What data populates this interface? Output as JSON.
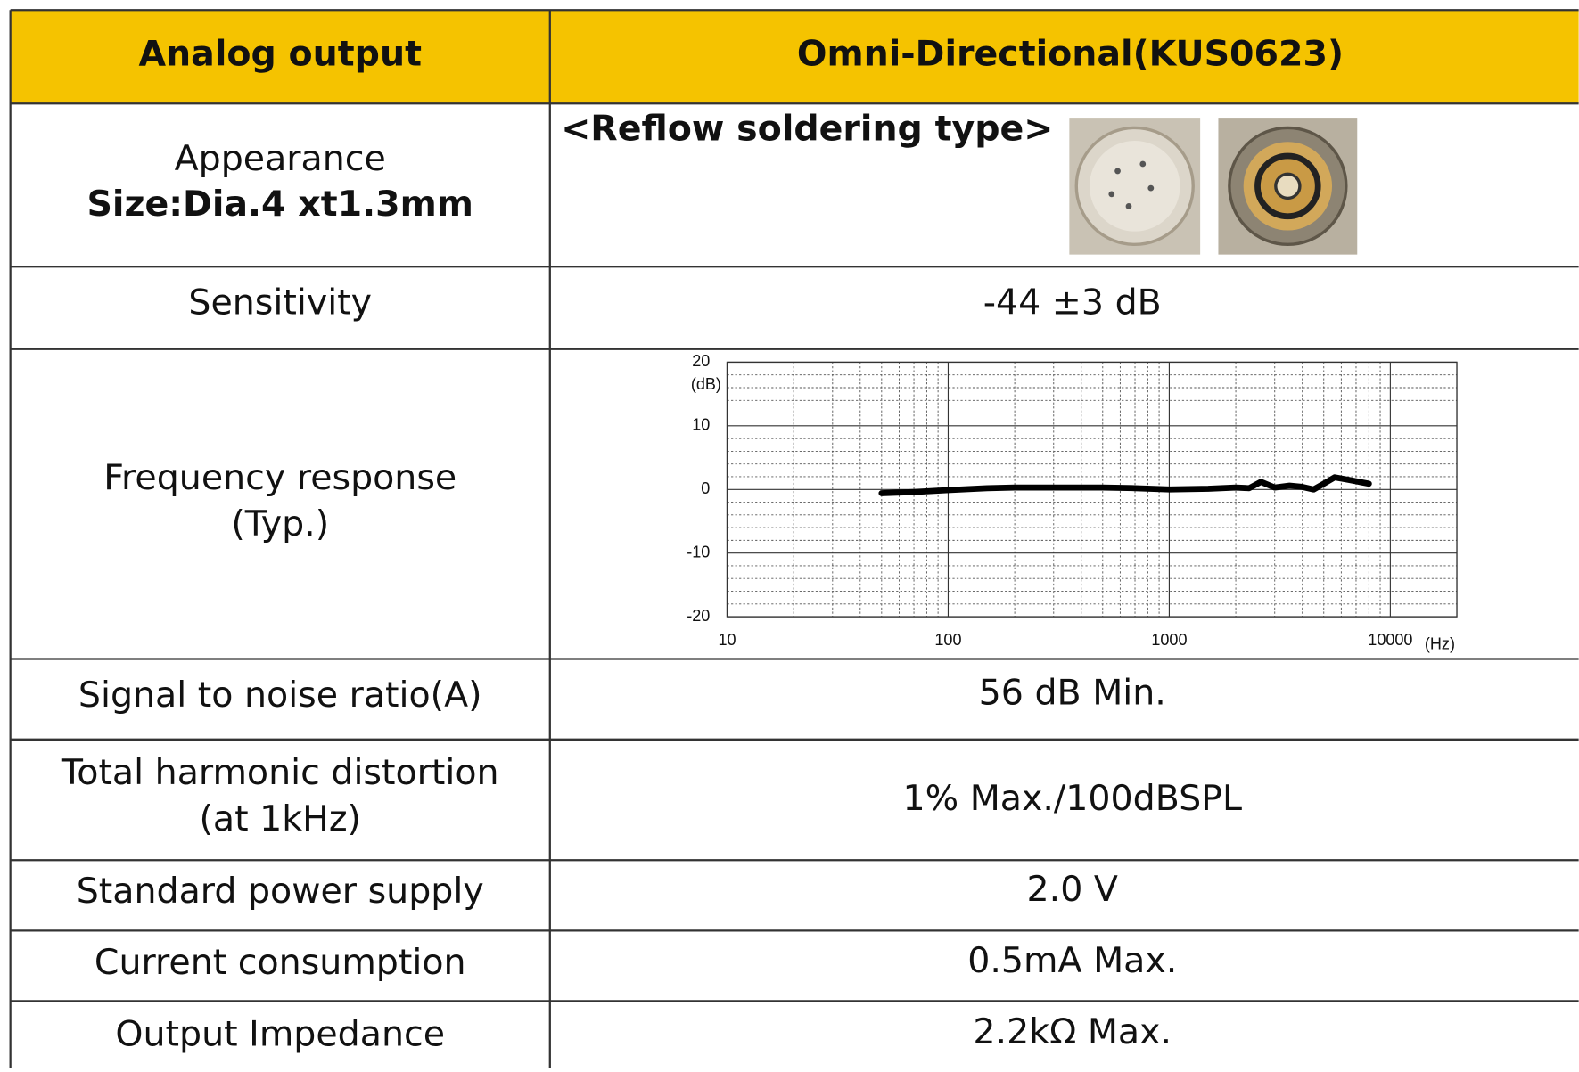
{
  "table": {
    "header": [
      "Analog output",
      "Omni-Directional(KUS0623)"
    ],
    "rows": [
      {
        "label": "Appearance",
        "sublabel": "Size:Dia.4 xt1.3mm",
        "value": "<Reflow soldering type>"
      },
      {
        "label": "Sensitivity",
        "value": "-44 ±3 dB"
      },
      {
        "label": "Frequency response",
        "sublabel": "(Typ.)"
      },
      {
        "label": "Signal to noise ratio(A)",
        "value": "56 dB Min."
      },
      {
        "label": "Total harmonic distortion",
        "sublabel": "(at 1kHz)",
        "value": "1% Max./100dBSPL"
      },
      {
        "label": "Standard power supply",
        "value": "2.0 V"
      },
      {
        "label": "Current consumption",
        "value": "0.5mA Max."
      },
      {
        "label": "Output Impedance",
        "value": "2.2kΩ Max."
      }
    ]
  },
  "chart_data": {
    "type": "line",
    "xscale": "log",
    "xlabel": "(Hz)",
    "ylabel": "(dB)",
    "color": "#000000",
    "x": [
      50,
      70,
      100,
      150,
      200,
      300,
      400,
      500,
      700,
      1000,
      1500,
      2000,
      2300,
      2600,
      3000,
      3500,
      4000,
      4500,
      5000,
      5600,
      6500,
      8000
    ],
    "values": [
      -0.6,
      -0.4,
      -0.1,
      0.2,
      0.3,
      0.3,
      0.3,
      0.3,
      0.2,
      0.0,
      0.1,
      0.3,
      0.2,
      1.2,
      0.3,
      0.6,
      0.4,
      0.0,
      0.9,
      1.9,
      1.5,
      0.9
    ],
    "xlim": [
      10,
      20000
    ],
    "ylim": [
      -20,
      20
    ],
    "xticks": [
      10,
      100,
      1000,
      10000
    ],
    "yticks": [
      -20,
      -10,
      0,
      10,
      20
    ],
    "xminor": [
      20,
      30,
      40,
      50,
      60,
      70,
      80,
      90,
      200,
      300,
      400,
      500,
      600,
      700,
      800,
      900,
      2000,
      3000,
      4000,
      5000,
      6000,
      7000,
      8000,
      9000
    ],
    "yminor": [
      -18,
      -16,
      -14,
      -12,
      -8,
      -6,
      -4,
      -2,
      2,
      4,
      6,
      8,
      12,
      14,
      16,
      18
    ],
    "grid": true
  }
}
